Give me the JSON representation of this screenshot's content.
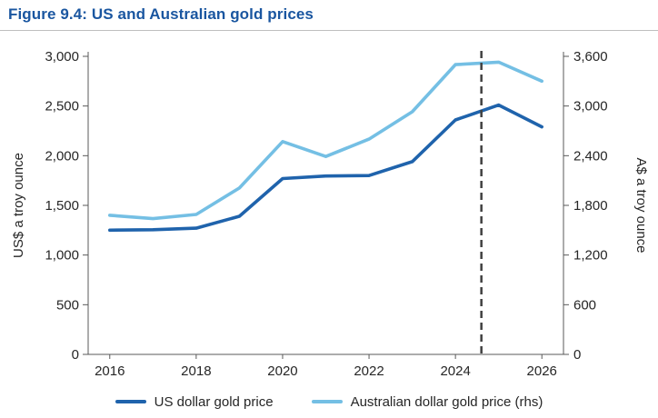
{
  "figure": {
    "title": "Figure 9.4: US and Australian gold prices",
    "title_color": "#1A56A0"
  },
  "chart_data": {
    "type": "line",
    "title": "US and Australian gold prices",
    "x": [
      2016,
      2017,
      2018,
      2019,
      2020,
      2021,
      2022,
      2023,
      2024,
      2025,
      2026
    ],
    "xticks": [
      "2016",
      "2018",
      "2020",
      "2022",
      "2024",
      "2026"
    ],
    "left_axis": {
      "label": "US$ a troy ounce",
      "range": [
        0,
        3000
      ],
      "ticks": [
        "0",
        "500",
        "1,000",
        "1,500",
        "2,000",
        "2,500",
        "3,000"
      ]
    },
    "right_axis": {
      "label": "A$ a troy ounce",
      "range": [
        0,
        3600
      ],
      "ticks": [
        "0",
        "600",
        "1,200",
        "1,800",
        "2,400",
        "3,000",
        "3,600"
      ]
    },
    "series": [
      {
        "name": "US dollar gold price",
        "axis": "left",
        "color": "#1F63AC",
        "values": [
          1250,
          1255,
          1270,
          1390,
          1770,
          1795,
          1800,
          1940,
          2360,
          2510,
          2290
        ]
      },
      {
        "name": "Australian dollar gold price (rhs)",
        "axis": "right",
        "color": "#74BFE4",
        "values": [
          1680,
          1640,
          1690,
          2010,
          2570,
          2390,
          2600,
          2930,
          3500,
          3530,
          3300
        ]
      }
    ],
    "forecast_line_x": 2024.6,
    "forecast_line_color": "#404040",
    "grid": false,
    "legend_position": "bottom"
  }
}
